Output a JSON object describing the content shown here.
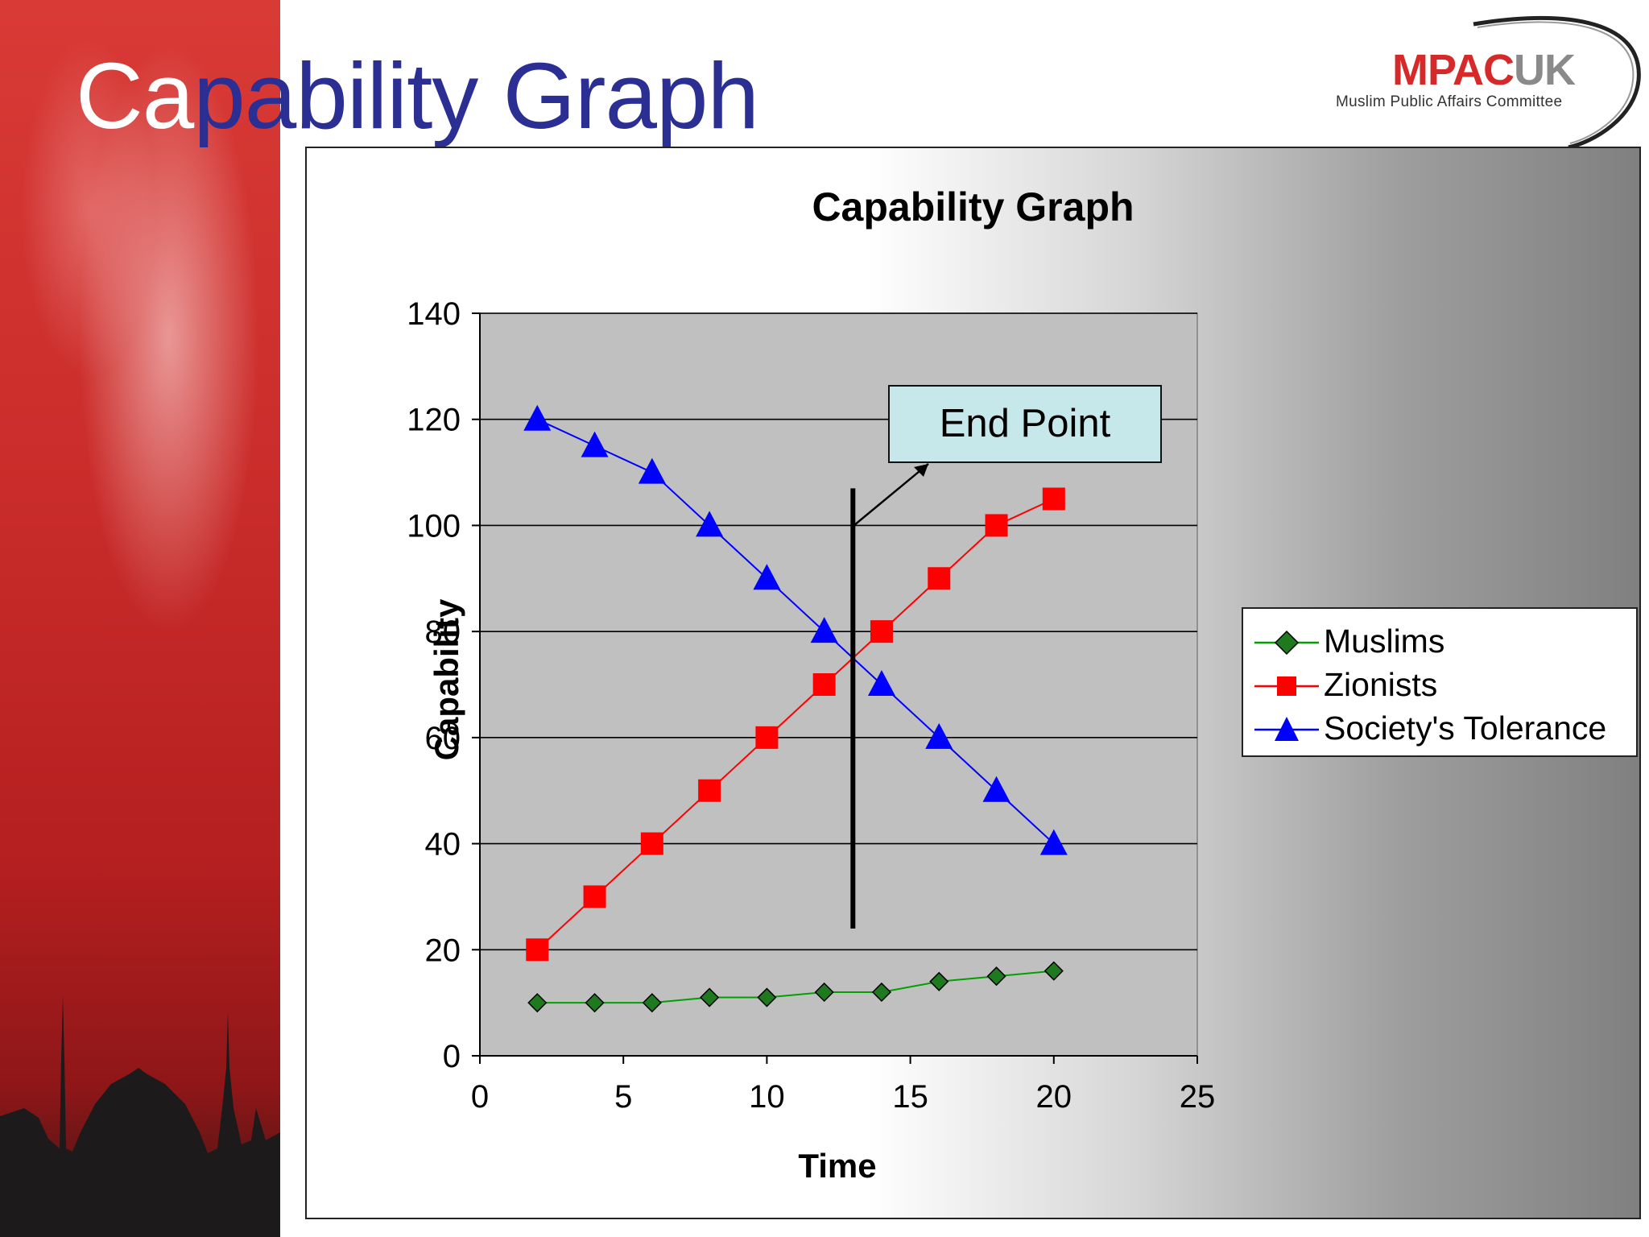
{
  "slide": {
    "title_part1": "Ca",
    "title_part2": "pability Graph"
  },
  "logo": {
    "main_a": "MPAC",
    "main_b": "UK",
    "subtitle": "Muslim Public Affairs Committee"
  },
  "colors": {
    "muslims": "#00a000",
    "muslims_marker": "#1f7a1f",
    "zionists": "#ff0000",
    "tolerance": "#0000ff",
    "plot_bg": "#c0c0c0",
    "callout_bg": "#c6e8ea",
    "title_blue": "#2b2f93"
  },
  "chart_data": {
    "type": "line",
    "title": "Capability Graph",
    "xlabel": "Time",
    "ylabel": "Capability",
    "xlim": [
      0,
      25
    ],
    "ylim": [
      0,
      140
    ],
    "xticks": [
      0,
      5,
      10,
      15,
      20,
      25
    ],
    "yticks": [
      0,
      20,
      40,
      60,
      80,
      100,
      120,
      140
    ],
    "grid": "horizontal",
    "legend_position": "right",
    "series": [
      {
        "name": "Muslims",
        "marker": "diamond",
        "x": [
          2,
          4,
          6,
          8,
          10,
          12,
          14,
          16,
          18,
          20
        ],
        "y": [
          10,
          10,
          10,
          11,
          11,
          12,
          12,
          14,
          15,
          16
        ]
      },
      {
        "name": "Zionists",
        "marker": "square",
        "x": [
          2,
          4,
          6,
          8,
          10,
          12,
          14,
          16,
          18,
          20
        ],
        "y": [
          20,
          30,
          40,
          50,
          60,
          70,
          80,
          90,
          100,
          105
        ]
      },
      {
        "name": "Society's Tolerance",
        "marker": "triangle",
        "x": [
          2,
          4,
          6,
          8,
          10,
          12,
          14,
          16,
          18,
          20
        ],
        "y": [
          120,
          115,
          110,
          100,
          90,
          80,
          70,
          60,
          50,
          40
        ]
      }
    ],
    "annotations": [
      {
        "label": "End Point",
        "vline_x": 13,
        "vline_y": [
          24,
          107
        ]
      }
    ]
  }
}
